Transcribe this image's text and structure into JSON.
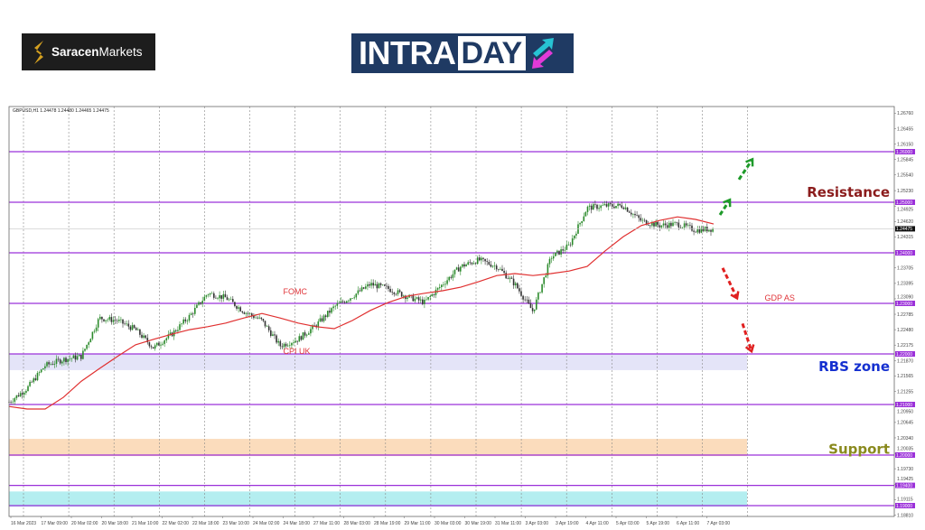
{
  "logos": {
    "saracen": {
      "bold": "Saracen",
      "light": "Markets"
    },
    "intraday": {
      "part1": "INTRA",
      "part2": "DAY"
    }
  },
  "chart_data": {
    "type": "candlestick",
    "symbol_info": "GBPUSD,H1  1.24478 1.24480 1.24465 1.24475",
    "current_price": 1.24475,
    "current_price_label": "1.24475",
    "ylim": [
      1.18786,
      1.2686
    ],
    "y_ticks": [
      "1.26760",
      "1.26455",
      "1.26150",
      "1.25845",
      "1.25540",
      "1.25230",
      "1.24925",
      "1.24620",
      "1.24315",
      "1.23705",
      "1.23395",
      "1.23090",
      "1.22785",
      "1.22480",
      "1.22175",
      "1.21870",
      "1.21565",
      "1.21255",
      "1.20950",
      "1.20645",
      "1.20340",
      "1.20035",
      "1.19730",
      "1.19425",
      "1.19115",
      "1.18810"
    ],
    "x_ticks": [
      "16 Mar 2023",
      "17 Mar 09:00",
      "20 Mar 02:00",
      "20 Mar 18:00",
      "21 Mar 10:00",
      "22 Mar 02:00",
      "22 Mar 18:00",
      "23 Mar 10:00",
      "24 Mar 02:00",
      "24 Mar 18:00",
      "27 Mar 11:00",
      "28 Mar 03:00",
      "28 Mar 19:00",
      "29 Mar 11:00",
      "30 Mar 03:00",
      "30 Mar 19:00",
      "31 Mar 11:00",
      "3 Apr 03:00",
      "3 Apr 19:00",
      "4 Apr 11:00",
      "5 Apr 03:00",
      "5 Apr 19:00",
      "6 Apr 11:00",
      "7 Apr 03:00"
    ],
    "grid": "vertical dashed",
    "price_path": [
      1.2105,
      1.2132,
      1.2177,
      1.2189,
      1.2195,
      1.2271,
      1.2266,
      1.2248,
      1.2212,
      1.2239,
      1.2275,
      1.232,
      1.2311,
      1.2284,
      1.2266,
      1.2216,
      1.2229,
      1.2257,
      1.2293,
      1.2314,
      1.2338,
      1.2329,
      1.2314,
      1.2302,
      1.2338,
      1.2373,
      1.2386,
      1.2373,
      1.2338,
      1.2284,
      1.2391,
      1.2414,
      1.2489,
      1.2493,
      1.2493,
      1.2463,
      1.2454,
      1.2457,
      1.2445,
      1.24475
    ],
    "moving_average": [
      1.2096,
      1.2091,
      1.2091,
      1.2114,
      1.2146,
      1.2171,
      1.2195,
      1.2218,
      1.2229,
      1.2239,
      1.2248,
      1.2254,
      1.2261,
      1.2271,
      1.228,
      1.2271,
      1.2261,
      1.2254,
      1.225,
      1.2266,
      1.2286,
      1.2302,
      1.2314,
      1.232,
      1.2325,
      1.2332,
      1.2343,
      1.2355,
      1.2359,
      1.2355,
      1.2359,
      1.2364,
      1.2373,
      1.2404,
      1.2432,
      1.2454,
      1.2464,
      1.2471,
      1.2466,
      1.2457
    ],
    "levels": [
      {
        "price": 1.26,
        "label": "1.26000"
      },
      {
        "price": 1.25,
        "label": "1.25000"
      },
      {
        "price": 1.24,
        "label": "1.24000"
      },
      {
        "price": 1.23,
        "label": "1.23000"
      },
      {
        "price": 1.22,
        "label": "1.22000"
      },
      {
        "price": 1.21,
        "label": "1.21000"
      },
      {
        "price": 1.2,
        "label": "1.20000"
      },
      {
        "price": 1.194,
        "label": "1.19400"
      },
      {
        "price": 1.19,
        "label": "1.19000"
      }
    ],
    "zones": [
      {
        "from": 1.2168,
        "to": 1.22,
        "color": "#e4e4f8"
      },
      {
        "from": 1.1998,
        "to": 1.2032,
        "color": "#fbdcbc"
      },
      {
        "from": 1.1898,
        "to": 1.1928,
        "color": "#b4eef0"
      }
    ],
    "annotations": [
      {
        "text": "FOMC",
        "time_index": 9,
        "price": 1.2318
      },
      {
        "text": "CPI UK",
        "time_index": 9,
        "price": 1.22
      },
      {
        "text": "GDP AS",
        "time_index": 25,
        "price": 1.2305
      }
    ],
    "zone_labels": [
      {
        "text": "Resistance",
        "color": "#8b1c1c",
        "price": 1.252
      },
      {
        "text": "RBS zone",
        "color": "#1530d0",
        "price": 1.2175
      },
      {
        "text": "Support",
        "color": "#8a8a1e",
        "price": 1.2012
      }
    ],
    "scenario_arrows": [
      {
        "direction": "up",
        "color": "#1e9a2a",
        "from": 1.2475,
        "to": 1.2505
      },
      {
        "direction": "up",
        "color": "#1e9a2a",
        "from": 1.2545,
        "to": 1.2585
      },
      {
        "direction": "down",
        "color": "#e02020",
        "from": 1.237,
        "to": 1.231
      },
      {
        "direction": "down",
        "color": "#e02020",
        "from": 1.226,
        "to": 1.2205
      }
    ],
    "colors": {
      "level": "#9b30d9",
      "ma": "#e03030",
      "bull": "#2b8a2b",
      "bear": "#333333",
      "grid": "#888888"
    }
  }
}
